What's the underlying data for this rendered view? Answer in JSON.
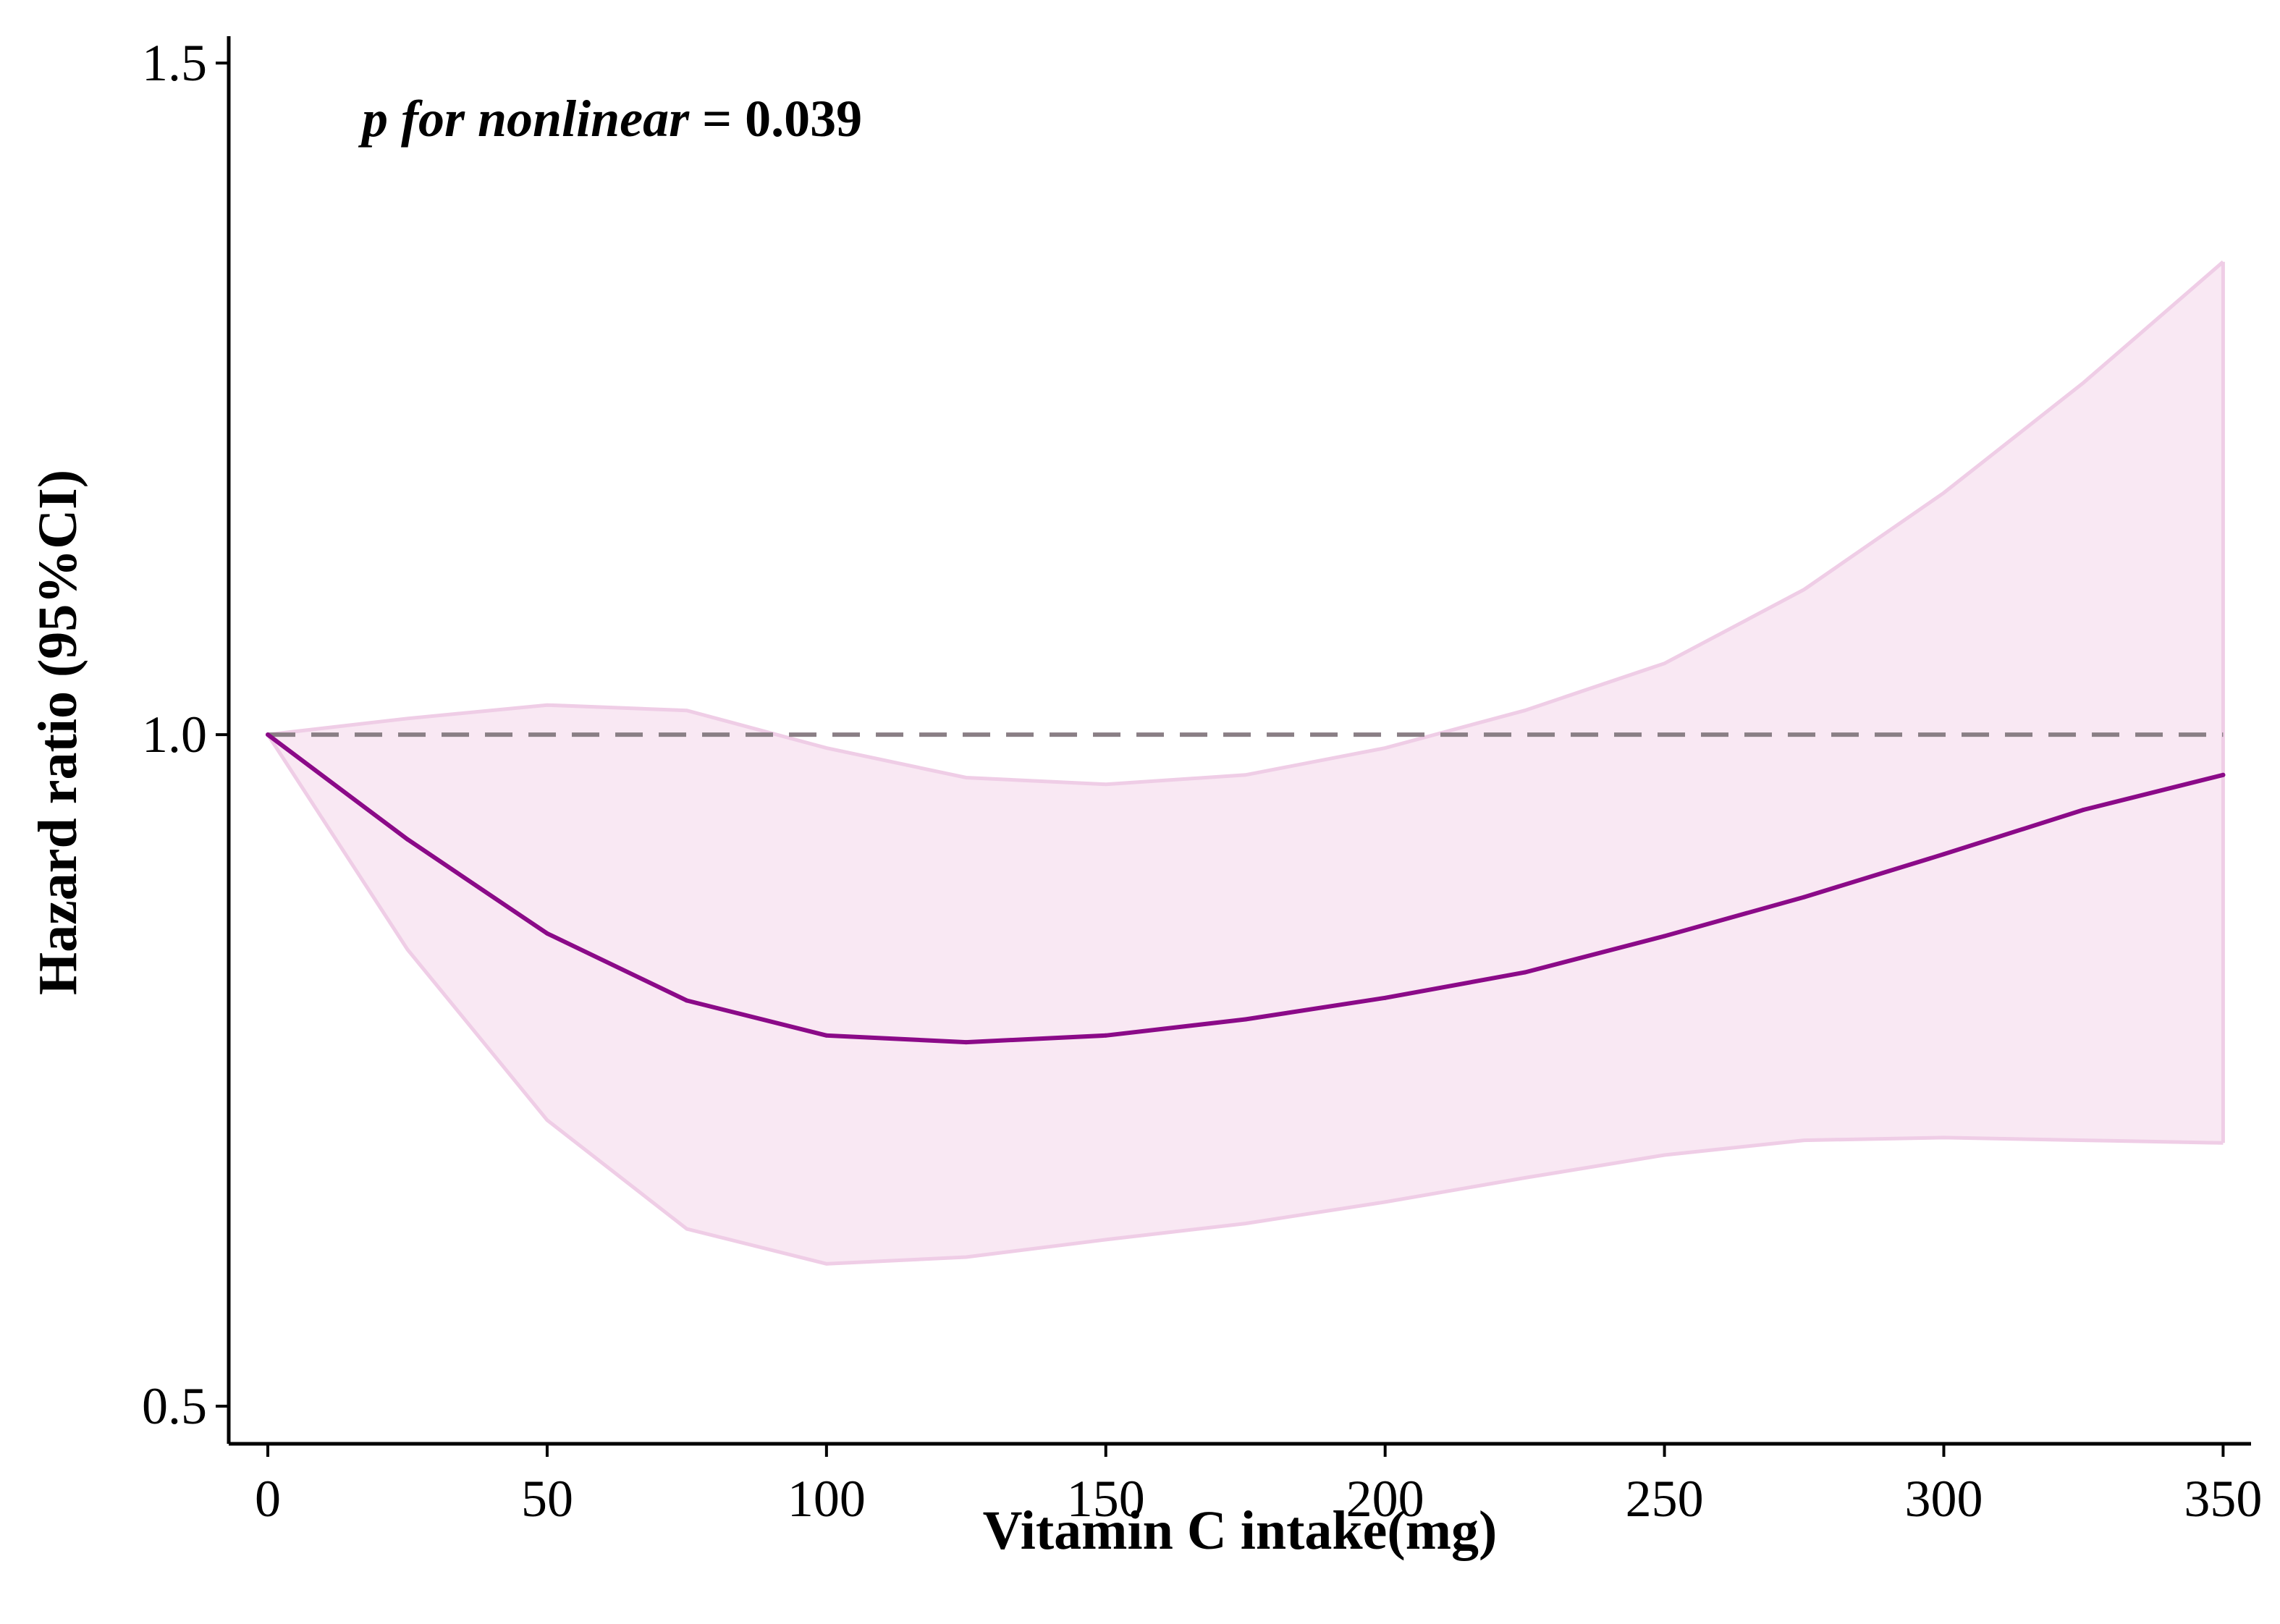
{
  "chart_data": {
    "type": "line",
    "title": "",
    "xlabel": "Vitamin C intake(mg)",
    "ylabel": "Hazard ratio (95%CI)",
    "xlim": [
      -7,
      355
    ],
    "ylim": [
      0.472,
      1.52
    ],
    "x_ticks": [
      0,
      50,
      100,
      150,
      200,
      250,
      300,
      350
    ],
    "x_tick_labels": [
      "0",
      "50",
      "100",
      "150",
      "200",
      "250",
      "300",
      "350"
    ],
    "y_ticks": [
      0.5,
      1.0,
      1.5
    ],
    "y_tick_labels": [
      "0.5",
      "1.0",
      "1.5"
    ],
    "x": [
      0,
      25,
      50,
      75,
      100,
      125,
      150,
      175,
      200,
      225,
      250,
      275,
      300,
      325,
      350
    ],
    "series": [
      {
        "name": "Hazard ratio",
        "color": "#8b0a88",
        "values": [
          1.0,
          0.922,
          0.852,
          0.802,
          0.776,
          0.771,
          0.776,
          0.788,
          0.804,
          0.823,
          0.85,
          0.879,
          0.911,
          0.944,
          0.97
        ]
      }
    ],
    "ci_band": {
      "name": "95% CI",
      "fill": "#f9e8f3",
      "edge": "#efcde6",
      "lower": [
        1.0,
        0.84,
        0.713,
        0.632,
        0.606,
        0.611,
        0.624,
        0.636,
        0.652,
        0.67,
        0.687,
        0.698,
        0.7,
        0.698,
        0.696
      ],
      "upper": [
        1.0,
        1.012,
        1.022,
        1.018,
        0.99,
        0.968,
        0.963,
        0.97,
        0.99,
        1.018,
        1.053,
        1.108,
        1.18,
        1.262,
        1.352
      ]
    },
    "reference_line": {
      "y": 1.0,
      "style": "dashed",
      "color": "#8a7f85"
    },
    "annotation": {
      "p_label": "p for nonlinear",
      "equals_text": " = 0.039"
    },
    "grid": false,
    "legend": "none"
  }
}
